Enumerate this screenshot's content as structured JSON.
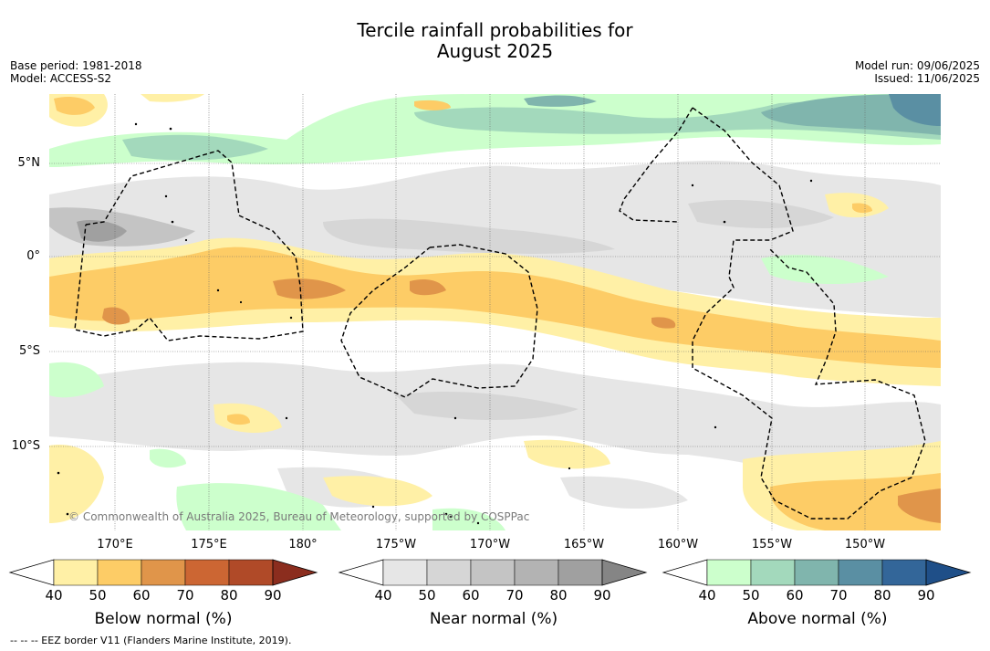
{
  "title_line1": "Tercile rainfall probabilities for",
  "title_line2": "August 2025",
  "base_period": "Base period: 1981-2018",
  "model": "Model: ACCESS-S2",
  "model_run": "Model run: 09/06/2025",
  "issued": "Issued: 11/06/2025",
  "copyright": "© Commonwealth of Australia 2025, Bureau of Meteorology, supported by COSPPac",
  "footnote": "--  --  -- EEZ border V11 (Flanders Marine Institute, 2019).",
  "latitude_labels": [
    "5°N",
    "0°",
    "5°S",
    "10°S"
  ],
  "longitude_labels": [
    "170°E",
    "175°E",
    "180°",
    "175°W",
    "170°W",
    "165°W",
    "160°W",
    "155°W",
    "150°W"
  ],
  "colorbars": [
    {
      "title": "Below normal (%)",
      "ticks": [
        "40",
        "50",
        "60",
        "70",
        "80",
        "90"
      ],
      "colors": [
        "#fff0a6",
        "#fdcc66",
        "#e0954a",
        "#cc6633",
        "#b04a28",
        "#8b2d1e"
      ]
    },
    {
      "title": "Near normal (%)",
      "ticks": [
        "40",
        "50",
        "60",
        "70",
        "80",
        "90"
      ],
      "colors": [
        "#e6e6e6",
        "#d6d6d6",
        "#c4c4c4",
        "#b3b3b3",
        "#a0a0a0",
        "#858585"
      ]
    },
    {
      "title": "Above normal (%)",
      "ticks": [
        "40",
        "50",
        "60",
        "70",
        "80",
        "90"
      ],
      "colors": [
        "#ccffcc",
        "#a3d9bc",
        "#80b5ad",
        "#5a8fa3",
        "#336699",
        "#1f4f88"
      ]
    }
  ]
}
